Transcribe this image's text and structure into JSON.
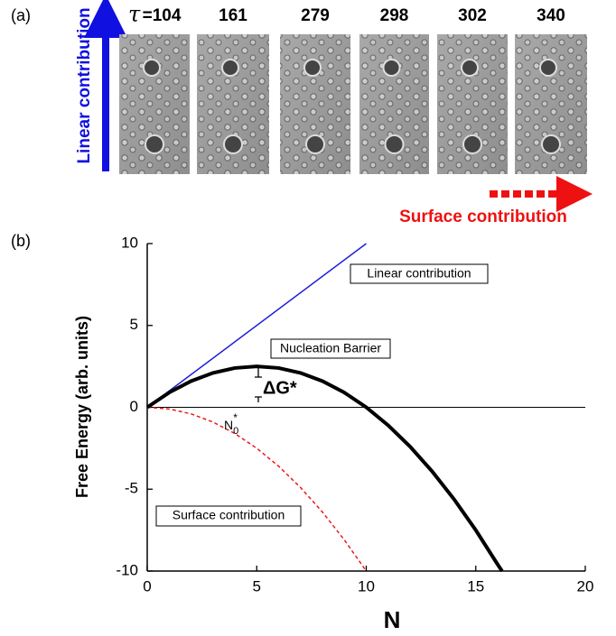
{
  "panel_a": {
    "label": "(a)",
    "tau_symbol": "τ",
    "frame_labels": [
      "=104",
      "161",
      "279",
      "298",
      "302",
      "340"
    ],
    "vertical_arrow_label": "Linear contribution",
    "horizontal_arrow_label": "Surface contribution"
  },
  "chart_data": {
    "type": "line",
    "panel_label": "(b)",
    "x_label": "N",
    "y_label": "Free Energy (arb. units)",
    "xlim": [
      0,
      20
    ],
    "xticks": [
      0,
      5,
      10,
      15,
      20
    ],
    "ylim": [
      -10,
      10
    ],
    "yticks": [
      -10,
      -5,
      0,
      5,
      10
    ],
    "series": [
      {
        "name": "Linear contribution",
        "color": "#1f1fd6",
        "dash": false,
        "width": 1.5,
        "x": [
          0,
          10
        ],
        "values": [
          0,
          10
        ]
      },
      {
        "name": "Surface contribution",
        "color": "#e8191c",
        "dash": true,
        "width": 1.5,
        "x": [
          0,
          1,
          2,
          3,
          4,
          5,
          6,
          7,
          8,
          9,
          10
        ],
        "values": [
          0,
          -0.1,
          -0.4,
          -0.9,
          -1.6,
          -2.5,
          -3.6,
          -4.9,
          -6.4,
          -8.1,
          -10
        ]
      },
      {
        "name": "Nucleation Barrier",
        "color": "#000000",
        "dash": false,
        "width": 4,
        "x": [
          0,
          1,
          2,
          3,
          4,
          5,
          6,
          7,
          8,
          9,
          10,
          11,
          12,
          13,
          14,
          15,
          16,
          16.2
        ],
        "values": [
          0,
          0.9,
          1.6,
          2.1,
          2.4,
          2.5,
          2.4,
          2.1,
          1.6,
          0.9,
          0,
          -1.1,
          -2.4,
          -3.9,
          -5.6,
          -7.5,
          -9.6,
          -10
        ]
      }
    ],
    "annotations": {
      "delta_g": "ΔG*",
      "n0_base": "N",
      "n0_sub": "0",
      "n0_sup": "*"
    }
  }
}
